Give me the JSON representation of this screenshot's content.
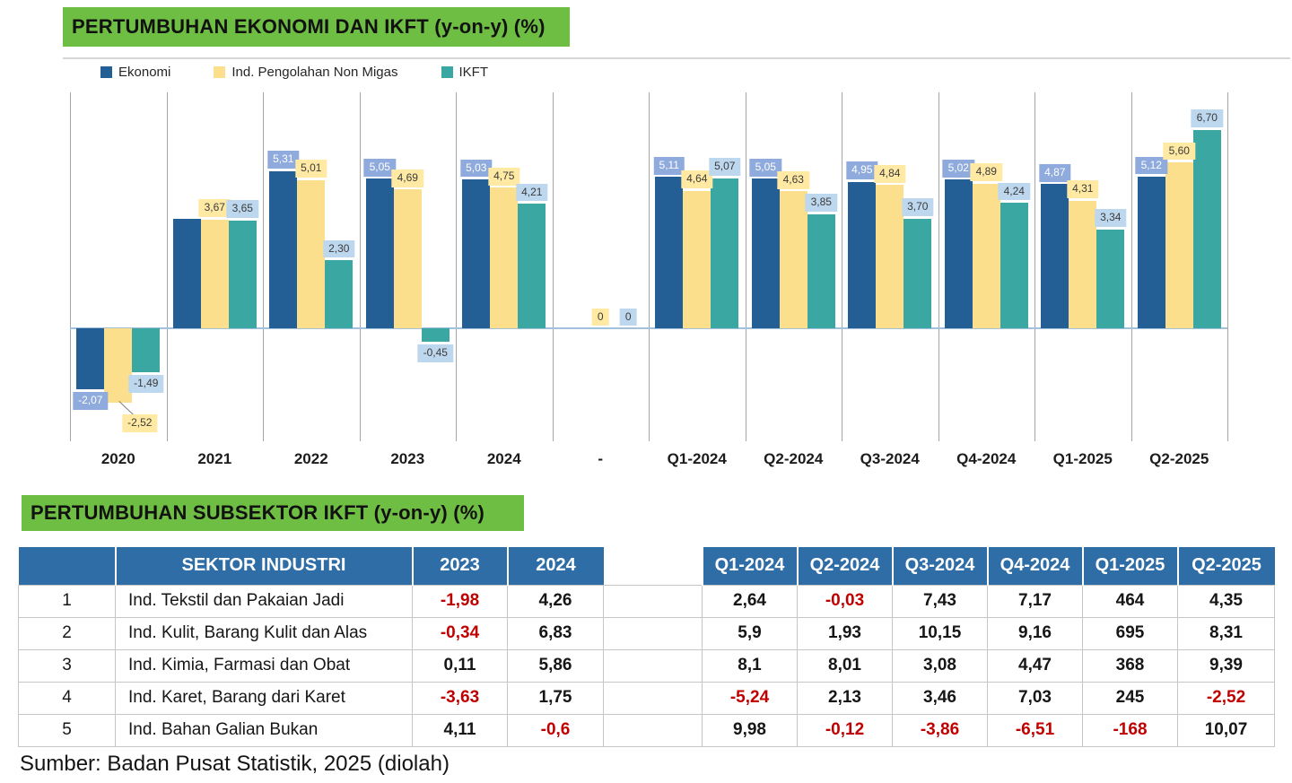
{
  "banners": {
    "chart_title": "PERTUMBUHAN EKONOMI DAN IKFT (y-on-y) (%)",
    "table_title": "PERTUMBUHAN SUBSEKTOR IKFT (y-on-y) (%)"
  },
  "source_note": "Sumber: Badan Pusat Statistik, 2025 (diolah)",
  "colors": {
    "banner_green": "#6fbe44",
    "table_header_blue": "#2e6da6",
    "negative_red": "#c00000",
    "gridline_gray": "#a6a6a6",
    "baseline_blue": "#a3c0dc"
  },
  "chart_data": {
    "type": "bar",
    "title": "PERTUMBUHAN EKONOMI DAN IKFT (y-on-y) (%)",
    "xlabel": "",
    "ylabel": "",
    "ylim": [
      -3.85,
      7.95
    ],
    "grid": "vertical category separators only",
    "legend_position": "top-left",
    "categories": [
      "2020",
      "2021",
      "2022",
      "2023",
      "2024",
      "-",
      "Q1-2024",
      "Q2-2024",
      "Q3-2024",
      "Q4-2024",
      "Q1-2025",
      "Q2-2025"
    ],
    "series": [
      {
        "name": "Ekonomi",
        "color": "#235e94",
        "label_bg": "#8faadc",
        "label_text_color": "#ffffff",
        "values": [
          -2.07,
          3.7,
          5.31,
          5.05,
          5.03,
          null,
          5.11,
          5.05,
          4.95,
          5.02,
          4.87,
          5.12
        ],
        "labels": [
          "-2,07",
          null,
          "5,31",
          "5,05",
          "5,03",
          null,
          "5,11",
          "5,05",
          "4,95",
          "5,02",
          "4,87",
          "5,12"
        ]
      },
      {
        "name": "Ind. Pengolahan Non Migas",
        "color": "#fbdf8d",
        "label_bg": "#ffe9a3",
        "label_text_color": "#3b3b3b",
        "values": [
          -2.52,
          3.67,
          5.01,
          4.69,
          4.75,
          0,
          4.64,
          4.63,
          4.84,
          4.89,
          4.31,
          5.6
        ],
        "labels": [
          {
            "text": "-2,52",
            "dx": 24,
            "dy": 10,
            "leader": true
          },
          "3,67",
          "5,01",
          "4,69",
          "4,75",
          "0",
          "4,64",
          "4,63",
          "4,84",
          "4,89",
          "4,31",
          "5,60"
        ]
      },
      {
        "name": "IKFT",
        "color": "#3aa7a3",
        "label_bg": "#bdd7ee",
        "label_text_color": "#3b3b3b",
        "values": [
          -1.49,
          3.65,
          2.3,
          -0.45,
          4.21,
          0,
          5.07,
          3.85,
          3.7,
          4.24,
          3.34,
          6.7
        ],
        "labels": [
          "-1,49",
          "3,65",
          "2,30",
          "-0,45",
          "4,21",
          "0",
          "5,07",
          "3,85",
          "3,70",
          "4,24",
          "3,34",
          "6,70"
        ]
      }
    ]
  },
  "table": {
    "headers": [
      "",
      "SEKTOR INDUSTRI",
      "2023",
      "2024",
      "",
      "Q1-2024",
      "Q2-2024",
      "Q3-2024",
      "Q4-2024",
      "Q1-2025",
      "Q2-2025"
    ],
    "rows": [
      [
        "1",
        "Ind. Tekstil dan Pakaian Jadi",
        "-1,98",
        "4,26",
        "",
        "2,64",
        "-0,03",
        "7,43",
        "7,17",
        "464",
        "4,35"
      ],
      [
        "2",
        "Ind. Kulit, Barang Kulit dan Alas",
        "-0,34",
        "6,83",
        "",
        "5,9",
        "1,93",
        "10,15",
        "9,16",
        "695",
        "8,31"
      ],
      [
        "3",
        "Ind. Kimia, Farmasi dan Obat",
        "0,11",
        "5,86",
        "",
        "8,1",
        "8,01",
        "3,08",
        "4,47",
        "368",
        "9,39"
      ],
      [
        "4",
        "Ind. Karet, Barang dari Karet",
        "-3,63",
        "1,75",
        "",
        "-5,24",
        "2,13",
        "3,46",
        "7,03",
        "245",
        "-2,52"
      ],
      [
        "5",
        "Ind. Bahan Galian Bukan",
        "4,11",
        "-0,6",
        "",
        "9,98",
        "-0,12",
        "-3,86",
        "-6,51",
        "-168",
        "10,07"
      ]
    ]
  }
}
